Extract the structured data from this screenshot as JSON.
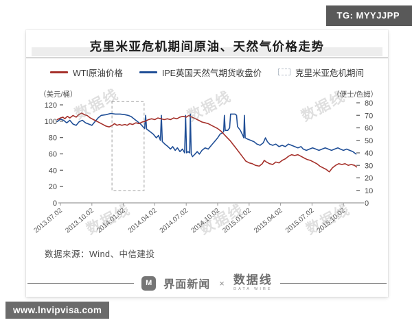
{
  "badge": {
    "text": "TG: MYYJJPP"
  },
  "url_badge": {
    "text": "www.lnvipvisa.com"
  },
  "title": "克里米亚危机期间原油、天然气价格走势",
  "legend": [
    {
      "label": "WTI原油价格",
      "type": "line",
      "color": "#a5302a"
    },
    {
      "label": "IPE英国天然气期货收盘价",
      "type": "line",
      "color": "#1f4e96"
    },
    {
      "label": "克里米亚危机期间",
      "type": "dashed-box",
      "color": "#b5b5b5"
    }
  ],
  "source": "数据来源：Wind、中信建投",
  "watermark": "数据线",
  "footer": {
    "jiemian_icon": "M",
    "jiemian": "界面新闻",
    "times": "×",
    "datawire": "数据线",
    "datawire_sub": "DATA WIRE"
  },
  "chart_data": {
    "type": "line",
    "title": "克里米亚危机期间原油、天然气价格走势",
    "x_unit": "tick-index (0 = 2013.07.02, 1 tick = 3 months)",
    "x_ticks": [
      "2013.07.02",
      "2013.10.02",
      "2014.01.02",
      "2014.04.02",
      "2014.07.02",
      "2014.10.02",
      "2015.01.02",
      "2015.04.02",
      "2015.07.02",
      "2015.10.02"
    ],
    "left_axis": {
      "unit_label": "（美元/桶）",
      "ticks": [
        0,
        20,
        40,
        60,
        80,
        100,
        120
      ],
      "range": [
        0,
        120
      ]
    },
    "right_axis": {
      "unit_label": "（便士/色姆）",
      "ticks": [
        0,
        10,
        20,
        30,
        40,
        50,
        60,
        70,
        80
      ],
      "range": [
        0,
        80
      ]
    },
    "crisis_box": {
      "label": "克里米亚危机期间",
      "t0": 1.64,
      "t1": 2.66,
      "top_usd": 124,
      "bottom_usd": 15,
      "color": "#b0b0b0"
    },
    "series": [
      {
        "name": "WTI原油价格",
        "axis": "left",
        "color": "#a5302a",
        "points": [
          [
            -0.1,
            102
          ],
          [
            0.0,
            104
          ],
          [
            0.08,
            105
          ],
          [
            0.14,
            103
          ],
          [
            0.22,
            106
          ],
          [
            0.3,
            104
          ],
          [
            0.4,
            107
          ],
          [
            0.5,
            105
          ],
          [
            0.58,
            108
          ],
          [
            0.68,
            110
          ],
          [
            0.76,
            108
          ],
          [
            0.85,
            107
          ],
          [
            0.95,
            104
          ],
          [
            1.05,
            102
          ],
          [
            1.15,
            100
          ],
          [
            1.25,
            98
          ],
          [
            1.35,
            96
          ],
          [
            1.45,
            94
          ],
          [
            1.55,
            93
          ],
          [
            1.65,
            95
          ],
          [
            1.72,
            97
          ],
          [
            1.8,
            95
          ],
          [
            1.88,
            96
          ],
          [
            1.95,
            95
          ],
          [
            2.05,
            96
          ],
          [
            2.12,
            95
          ],
          [
            2.2,
            97
          ],
          [
            2.3,
            96
          ],
          [
            2.4,
            98
          ],
          [
            2.5,
            97
          ],
          [
            2.6,
            99
          ],
          [
            2.7,
            100
          ],
          [
            2.8,
            102
          ],
          [
            2.9,
            103
          ],
          [
            3.0,
            102
          ],
          [
            3.1,
            104
          ],
          [
            3.2,
            103
          ],
          [
            3.3,
            102
          ],
          [
            3.4,
            103
          ],
          [
            3.5,
            102
          ],
          [
            3.6,
            104
          ],
          [
            3.7,
            103
          ],
          [
            3.8,
            105
          ],
          [
            3.9,
            106
          ],
          [
            4.0,
            105
          ],
          [
            4.08,
            107
          ],
          [
            4.18,
            105
          ],
          [
            4.3,
            103
          ],
          [
            4.4,
            101
          ],
          [
            4.5,
            99
          ],
          [
            4.6,
            98
          ],
          [
            4.7,
            97
          ],
          [
            4.8,
            95
          ],
          [
            4.9,
            93
          ],
          [
            5.0,
            91
          ],
          [
            5.1,
            88
          ],
          [
            5.2,
            84
          ],
          [
            5.3,
            80
          ],
          [
            5.4,
            76
          ],
          [
            5.5,
            71
          ],
          [
            5.6,
            66
          ],
          [
            5.7,
            61
          ],
          [
            5.8,
            56
          ],
          [
            5.9,
            51
          ],
          [
            6.0,
            49
          ],
          [
            6.1,
            48
          ],
          [
            6.2,
            46
          ],
          [
            6.32,
            45
          ],
          [
            6.42,
            48
          ],
          [
            6.48,
            52
          ],
          [
            6.55,
            50
          ],
          [
            6.65,
            48
          ],
          [
            6.75,
            47
          ],
          [
            6.85,
            50
          ],
          [
            6.95,
            49
          ],
          [
            7.05,
            52
          ],
          [
            7.15,
            54
          ],
          [
            7.25,
            57
          ],
          [
            7.35,
            59
          ],
          [
            7.45,
            58
          ],
          [
            7.55,
            59
          ],
          [
            7.65,
            57
          ],
          [
            7.75,
            55
          ],
          [
            7.85,
            53
          ],
          [
            7.95,
            52
          ],
          [
            8.05,
            50
          ],
          [
            8.15,
            48
          ],
          [
            8.25,
            45
          ],
          [
            8.35,
            43
          ],
          [
            8.45,
            41
          ],
          [
            8.55,
            38
          ],
          [
            8.65,
            43
          ],
          [
            8.75,
            46
          ],
          [
            8.85,
            48
          ],
          [
            8.95,
            47
          ],
          [
            9.05,
            48
          ],
          [
            9.15,
            46
          ],
          [
            9.25,
            47
          ],
          [
            9.35,
            46
          ],
          [
            9.42,
            44
          ]
        ]
      },
      {
        "name": "IPE英国天然气期货收盘价",
        "axis": "right",
        "color": "#1f4e96",
        "points": [
          [
            -0.1,
            65
          ],
          [
            0.0,
            67
          ],
          [
            0.1,
            66
          ],
          [
            0.2,
            64
          ],
          [
            0.3,
            66
          ],
          [
            0.4,
            63
          ],
          [
            0.5,
            62
          ],
          [
            0.6,
            65
          ],
          [
            0.7,
            66
          ],
          [
            0.8,
            64
          ],
          [
            0.9,
            63
          ],
          [
            1.0,
            62
          ],
          [
            1.1,
            65
          ],
          [
            1.2,
            68
          ],
          [
            1.3,
            70
          ],
          [
            1.45,
            70.5
          ],
          [
            1.6,
            71.5
          ],
          [
            1.75,
            71
          ],
          [
            1.9,
            71
          ],
          [
            2.05,
            70.5
          ],
          [
            2.15,
            70
          ],
          [
            2.25,
            69
          ],
          [
            2.35,
            67
          ],
          [
            2.45,
            65
          ],
          [
            2.55,
            63
          ],
          [
            2.62,
            61
          ],
          [
            2.68,
            59.5
          ],
          [
            2.71,
            70
          ],
          [
            2.74,
            59
          ],
          [
            2.85,
            57
          ],
          [
            2.95,
            55
          ],
          [
            3.05,
            52
          ],
          [
            3.12,
            54
          ],
          [
            3.18,
            50
          ],
          [
            3.21,
            70
          ],
          [
            3.24,
            49
          ],
          [
            3.32,
            47
          ],
          [
            3.42,
            45
          ],
          [
            3.5,
            43
          ],
          [
            3.57,
            45
          ],
          [
            3.65,
            42
          ],
          [
            3.72,
            44
          ],
          [
            3.8,
            41
          ],
          [
            3.88,
            43
          ],
          [
            3.95,
            40
          ],
          [
            3.98,
            70
          ],
          [
            4.01,
            40
          ],
          [
            4.06,
            41
          ],
          [
            4.11,
            40
          ],
          [
            4.13,
            71
          ],
          [
            4.16,
            39
          ],
          [
            4.2,
            37
          ],
          [
            4.28,
            39
          ],
          [
            4.35,
            41
          ],
          [
            4.42,
            39
          ],
          [
            4.5,
            42
          ],
          [
            4.6,
            44
          ],
          [
            4.7,
            43
          ],
          [
            4.8,
            46
          ],
          [
            4.9,
            49
          ],
          [
            5.0,
            52
          ],
          [
            5.08,
            55
          ],
          [
            5.15,
            56
          ],
          [
            5.19,
            57
          ],
          [
            5.215,
            70
          ],
          [
            5.24,
            58
          ],
          [
            5.32,
            58
          ],
          [
            5.38,
            60
          ],
          [
            5.41,
            71
          ],
          [
            5.55,
            71
          ],
          [
            5.6,
            70
          ],
          [
            5.63,
            61
          ],
          [
            5.72,
            58
          ],
          [
            5.8,
            54
          ],
          [
            5.83,
            52
          ],
          [
            5.85,
            70
          ],
          [
            5.875,
            52
          ],
          [
            5.95,
            51
          ],
          [
            6.05,
            50
          ],
          [
            6.15,
            49
          ],
          [
            6.25,
            47
          ],
          [
            6.35,
            46
          ],
          [
            6.45,
            48
          ],
          [
            6.52,
            52
          ],
          [
            6.58,
            49
          ],
          [
            6.65,
            47
          ],
          [
            6.75,
            46
          ],
          [
            6.85,
            47
          ],
          [
            6.95,
            45
          ],
          [
            7.05,
            46
          ],
          [
            7.15,
            45
          ],
          [
            7.25,
            47
          ],
          [
            7.35,
            46
          ],
          [
            7.45,
            45
          ],
          [
            7.55,
            44
          ],
          [
            7.65,
            45
          ],
          [
            7.72,
            43
          ],
          [
            7.82,
            42
          ],
          [
            7.92,
            43
          ],
          [
            8.02,
            44
          ],
          [
            8.12,
            43
          ],
          [
            8.22,
            42
          ],
          [
            8.32,
            43
          ],
          [
            8.42,
            44
          ],
          [
            8.52,
            43
          ],
          [
            8.62,
            42
          ],
          [
            8.72,
            43
          ],
          [
            8.82,
            44
          ],
          [
            8.9,
            43
          ],
          [
            9.0,
            42
          ],
          [
            9.1,
            43
          ],
          [
            9.2,
            42
          ],
          [
            9.3,
            41
          ],
          [
            9.4,
            39
          ]
        ]
      }
    ],
    "source": "数据来源：Wind、中信建投"
  }
}
